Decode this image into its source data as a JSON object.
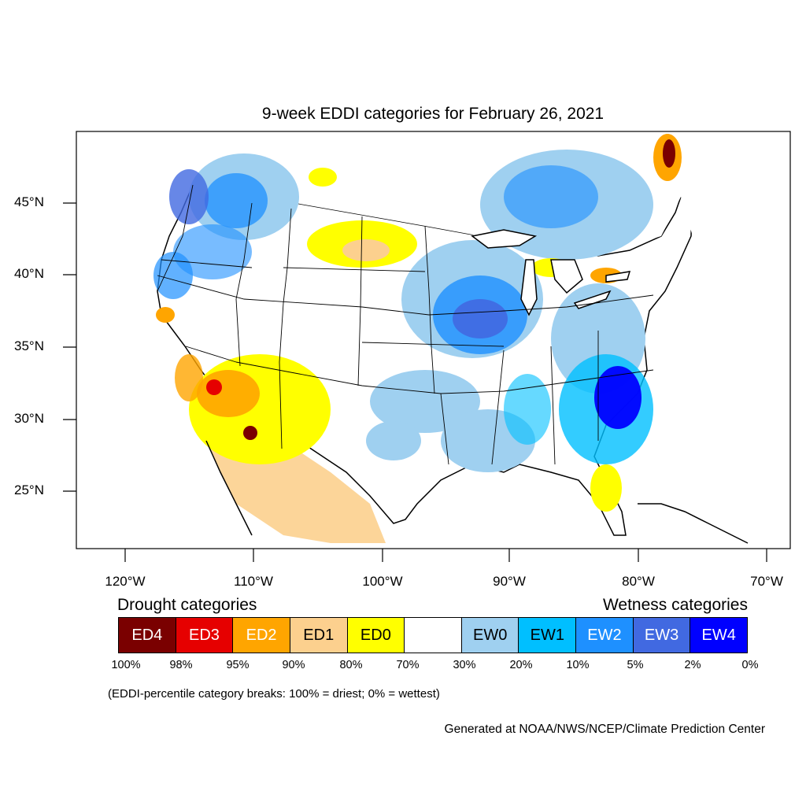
{
  "title": "9-week EDDI categories for February 26, 2021",
  "axes": {
    "latitude_labels": [
      "45°N",
      "40°N",
      "35°N",
      "30°N",
      "25°N"
    ],
    "longitude_labels": [
      "120°W",
      "110°W",
      "100°W",
      "90°W",
      "80°W",
      "70°W"
    ]
  },
  "legend": {
    "drought_heading": "Drought categories",
    "wetness_heading": "Wetness categories",
    "categories": [
      {
        "label": "ED4",
        "color": "#7a0000",
        "text_color": "#ffffff"
      },
      {
        "label": "ED3",
        "color": "#e60000",
        "text_color": "#ffffff"
      },
      {
        "label": "ED2",
        "color": "#ffa500",
        "text_color": "#ffffff"
      },
      {
        "label": "ED1",
        "color": "#fcd08e",
        "text_color": "#000000"
      },
      {
        "label": "ED0",
        "color": "#ffff00",
        "text_color": "#000000"
      },
      {
        "label": "",
        "color": "#ffffff",
        "text_color": "#000000"
      },
      {
        "label": "EW0",
        "color": "#9fd0f0",
        "text_color": "#000000"
      },
      {
        "label": "EW1",
        "color": "#00bfff",
        "text_color": "#000000"
      },
      {
        "label": "EW2",
        "color": "#1e90ff",
        "text_color": "#ffffff"
      },
      {
        "label": "EW3",
        "color": "#4169e1",
        "text_color": "#ffffff"
      },
      {
        "label": "EW4",
        "color": "#0000ff",
        "text_color": "#ffffff"
      }
    ],
    "percentile_breaks": [
      "100%",
      "98%",
      "95%",
      "90%",
      "80%",
      "70%",
      "30%",
      "20%",
      "10%",
      "5%",
      "2%",
      "0%"
    ]
  },
  "footnote": "(EDDI-percentile category breaks: 100% = driest; 0% = wettest)",
  "credit": "Generated at NOAA/NWS/NCEP/Climate Prediction Center"
}
